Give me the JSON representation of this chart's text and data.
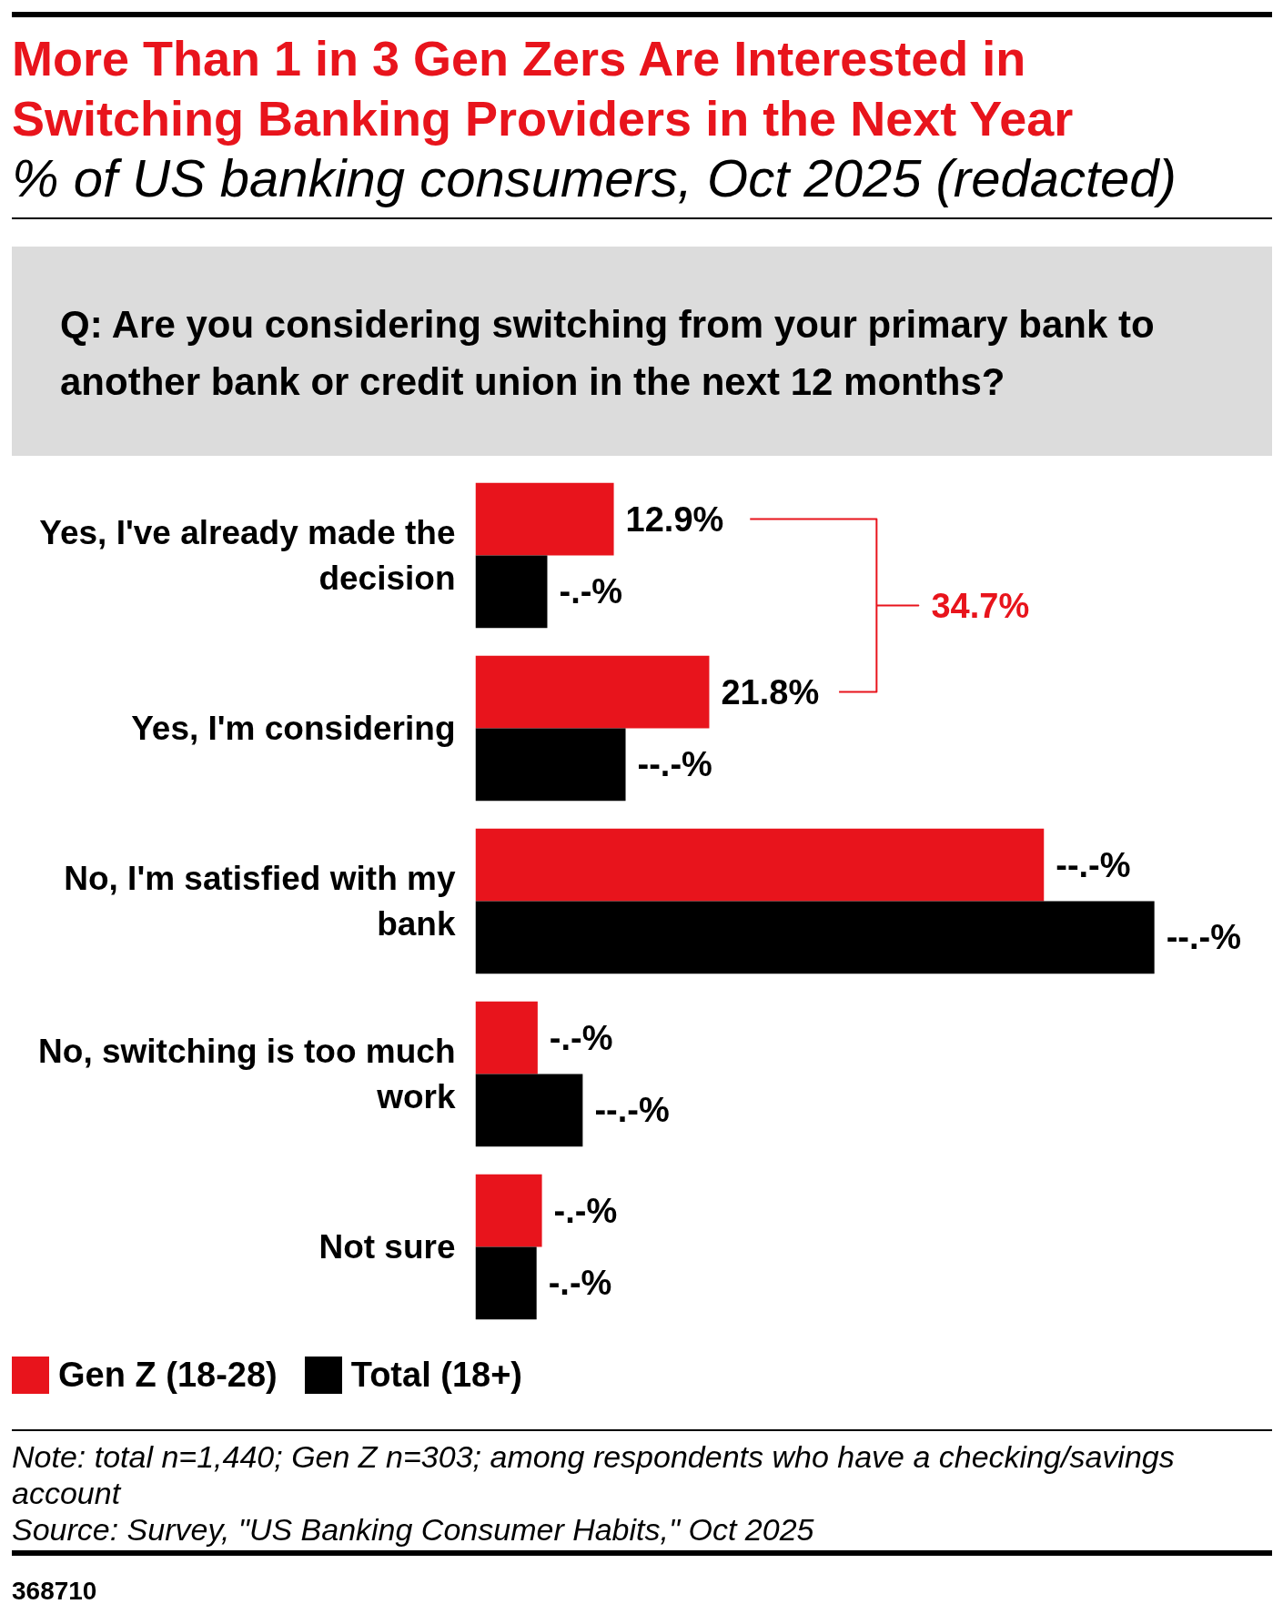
{
  "chart_data": {
    "type": "bar",
    "orientation": "horizontal",
    "title": "More Than 1 in 3 Gen Zers Are Interested in Switching Banking Providers in the Next Year",
    "subtitle": "% of US banking consumers, Oct 2025 (redacted)",
    "categories": [
      "Yes, I've already made the decision",
      "Yes, I'm considering",
      "No, I'm satisfied with my bank",
      "No, switching is too much work",
      "Not sure"
    ],
    "series": [
      {
        "name": "Gen Z (18-28)",
        "color": "#e8141c",
        "values": [
          12.9,
          21.8,
          53.0,
          5.8,
          6.2
        ],
        "value_labels": [
          "12.9%",
          "21.8%",
          "--.-%",
          "-.-%",
          "-.-%"
        ]
      },
      {
        "name": "Total (18+)",
        "color": "#000000",
        "values": [
          6.7,
          14.0,
          63.3,
          10.0,
          5.7
        ],
        "value_labels": [
          "-.-%",
          "--.-%",
          "--.-%",
          "--.-%",
          "-.-%"
        ]
      }
    ],
    "tick_labels": "y",
    "grid": false,
    "legend": "bottom left",
    "annotations": [
      "Q: Are you considering switching from your primary bank to another bank or credit union in the next 12 months?",
      "34.7%",
      "Note: total n=1,440; Gen Z n=303; among respondents who have a checking/savings account",
      "Source: Survey, \"US Banking Consumer Habits,\" Oct 2025",
      "368710"
    ]
  }
}
